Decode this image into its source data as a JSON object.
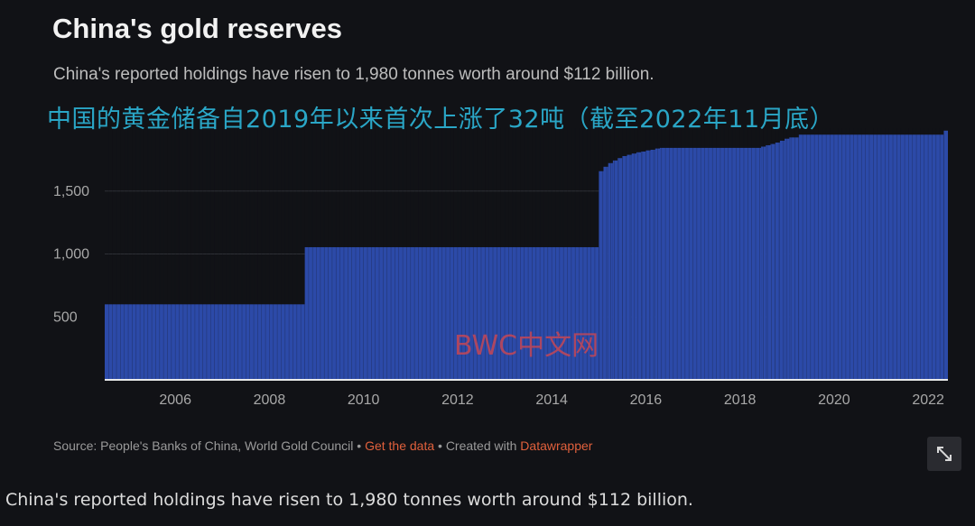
{
  "header": {
    "title": "China's gold reserves",
    "subtitle": "China's reported holdings have risen to 1,980 tonnes worth around $112 billion."
  },
  "overlay_text": "中国的黄金储备自2019年以来首次上涨了32吨（截至2022年11月底）",
  "watermark": "BWC中文网",
  "footer": {
    "source_text": "Source: People's Banks of China, World Gold Council",
    "separator": " • ",
    "get_data_label": "Get the data",
    "created_with_text": "Created with",
    "datawrapper_label": "Datawrapper"
  },
  "expand_button_icon": "expand-arrows-icon",
  "caption": "China's reported holdings have risen to 1,980 tonnes worth around $112 billion.",
  "colors": {
    "background": "#111216",
    "bar": "#2c4aa8",
    "bar_edge": "#4a68c8",
    "overlay_text": "#2aa6c6",
    "link": "#e0603c",
    "watermark": "#c44656"
  },
  "chart_data": {
    "type": "bar",
    "series_name": "",
    "x_range": [
      2005.0,
      2022.92
    ],
    "ylim": [
      0,
      2000
    ],
    "x_ticks": [
      2006,
      2008,
      2010,
      2012,
      2014,
      2016,
      2018,
      2020,
      2022
    ],
    "y_ticks": [
      500,
      1000,
      1500
    ],
    "y_tick_labels": [
      "500",
      "1,000",
      "1,500"
    ],
    "grid": true,
    "xlabel": "",
    "ylabel": "",
    "segments": [
      {
        "start": 2005.0,
        "end": 2009.25,
        "value": 600
      },
      {
        "start": 2009.25,
        "end": 2015.5,
        "value": 1054
      },
      {
        "start": 2015.5,
        "end": 2015.6,
        "value": 1658
      },
      {
        "start": 2015.6,
        "end": 2015.7,
        "value": 1693
      },
      {
        "start": 2015.7,
        "end": 2015.8,
        "value": 1722
      },
      {
        "start": 2015.8,
        "end": 2015.9,
        "value": 1743
      },
      {
        "start": 2015.9,
        "end": 2016.0,
        "value": 1762
      },
      {
        "start": 2016.0,
        "end": 2016.1,
        "value": 1778
      },
      {
        "start": 2016.1,
        "end": 2016.2,
        "value": 1788
      },
      {
        "start": 2016.2,
        "end": 2016.3,
        "value": 1798
      },
      {
        "start": 2016.3,
        "end": 2016.4,
        "value": 1808
      },
      {
        "start": 2016.4,
        "end": 2016.5,
        "value": 1814
      },
      {
        "start": 2016.5,
        "end": 2016.6,
        "value": 1823
      },
      {
        "start": 2016.6,
        "end": 2016.7,
        "value": 1828
      },
      {
        "start": 2016.7,
        "end": 2016.8,
        "value": 1838
      },
      {
        "start": 2016.8,
        "end": 2018.95,
        "value": 1843
      },
      {
        "start": 2018.95,
        "end": 2019.05,
        "value": 1853
      },
      {
        "start": 2019.05,
        "end": 2019.15,
        "value": 1864
      },
      {
        "start": 2019.15,
        "end": 2019.25,
        "value": 1874
      },
      {
        "start": 2019.25,
        "end": 2019.35,
        "value": 1885
      },
      {
        "start": 2019.35,
        "end": 2019.45,
        "value": 1900
      },
      {
        "start": 2019.45,
        "end": 2019.55,
        "value": 1916
      },
      {
        "start": 2019.55,
        "end": 2019.75,
        "value": 1926
      },
      {
        "start": 2019.75,
        "end": 2022.83,
        "value": 1948
      },
      {
        "start": 2022.83,
        "end": 2022.92,
        "value": 1980
      }
    ]
  }
}
